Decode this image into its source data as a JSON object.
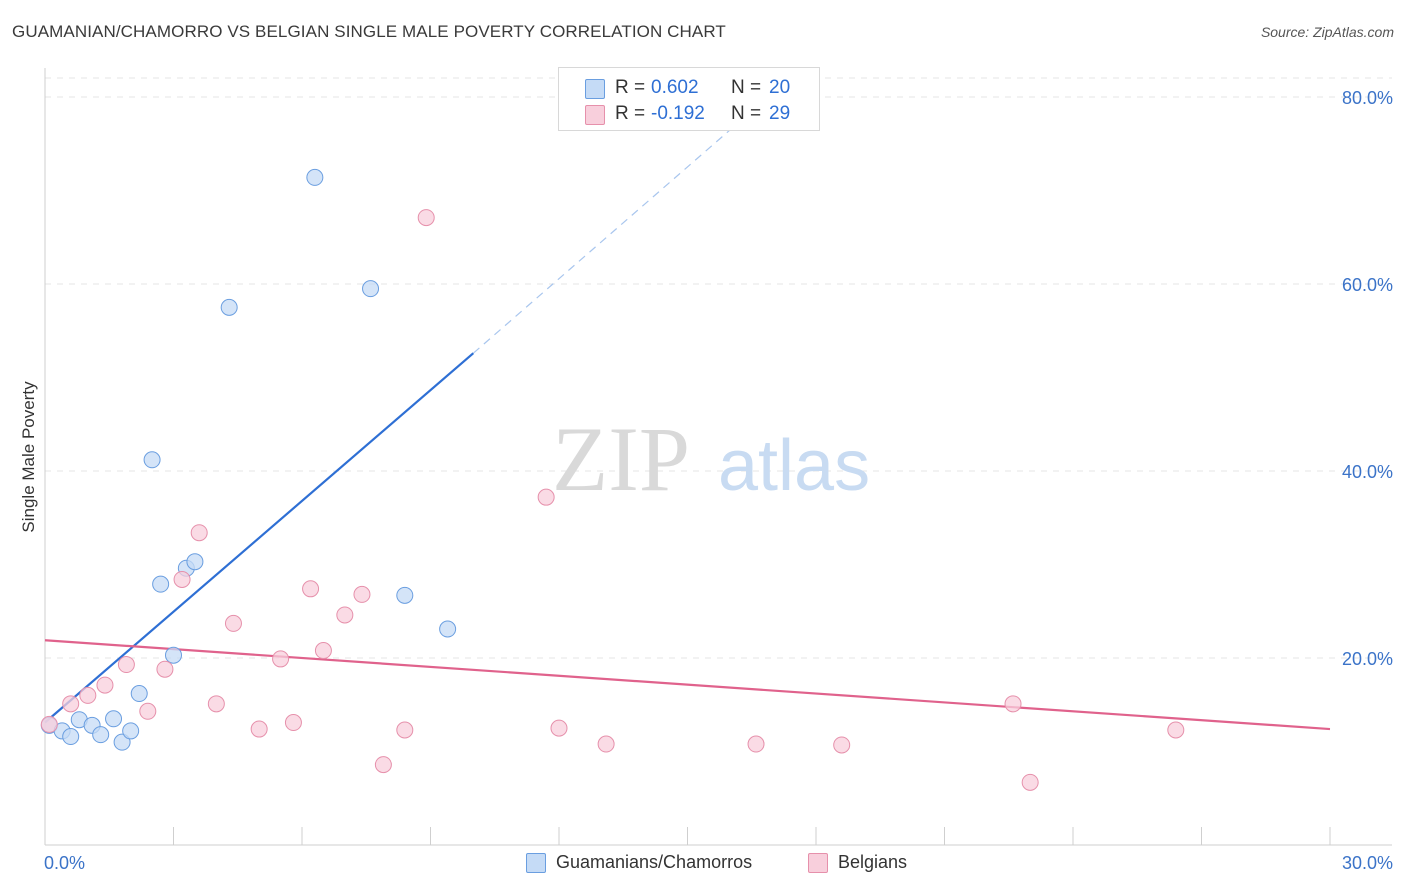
{
  "title": "GUAMANIAN/CHAMORRO VS BELGIAN SINGLE MALE POVERTY CORRELATION CHART",
  "source": "Source: ZipAtlas.com",
  "watermark": {
    "zip": "ZIP",
    "atlas": "atlas"
  },
  "legend": {
    "r_label": "R =",
    "n_label": "N =",
    "series1": {
      "r": "0.602",
      "n": "20",
      "color": "#b3d0f5",
      "border": "#6a9ee0"
    },
    "series2": {
      "r": "-0.192",
      "n": "29",
      "color": "#f8c6d5",
      "border": "#e690ab"
    }
  },
  "bottom_legend": {
    "series1": "Guamanians/Chamorros",
    "series2": "Belgians"
  },
  "chart_data": {
    "type": "scatter",
    "title": "GUAMANIAN/CHAMORRO VS BELGIAN SINGLE MALE POVERTY CORRELATION CHART",
    "xlabel": "",
    "ylabel": "Single Male Poverty",
    "xlim": [
      0,
      30
    ],
    "ylim": [
      0,
      80
    ],
    "x_tick_labels": [
      "0.0%",
      "30.0%"
    ],
    "y_tick_labels": [
      "20.0%",
      "40.0%",
      "60.0%",
      "80.0%"
    ],
    "y_ticks": [
      20,
      40,
      60,
      80
    ],
    "series": [
      {
        "name": "Guamanians/Chamorros",
        "color": "#6a9ee0",
        "fill": "#c5dbf6",
        "points": [
          [
            0.1,
            12.8
          ],
          [
            0.4,
            12.2
          ],
          [
            0.6,
            11.6
          ],
          [
            0.8,
            13.4
          ],
          [
            1.1,
            12.8
          ],
          [
            1.3,
            11.8
          ],
          [
            1.6,
            13.5
          ],
          [
            1.8,
            11.0
          ],
          [
            2.0,
            12.2
          ],
          [
            2.2,
            16.2
          ],
          [
            2.5,
            41.2
          ],
          [
            2.7,
            27.9
          ],
          [
            3.0,
            20.3
          ],
          [
            3.3,
            29.6
          ],
          [
            3.5,
            30.3
          ],
          [
            4.3,
            57.5
          ],
          [
            6.3,
            71.4
          ],
          [
            7.6,
            59.5
          ],
          [
            8.4,
            26.7
          ],
          [
            9.4,
            23.1
          ]
        ],
        "trend": {
          "x0": 0,
          "y0": 13.1,
          "x1": 10.0,
          "y1": 52.6,
          "dash_x1": 16.5,
          "dash_y1": 78.5,
          "color": "#2e6fd4"
        }
      },
      {
        "name": "Belgians",
        "color": "#e690ab",
        "fill": "#f8cfdc",
        "points": [
          [
            0.1,
            12.9
          ],
          [
            0.6,
            15.1
          ],
          [
            1.0,
            16.0
          ],
          [
            1.4,
            17.1
          ],
          [
            1.9,
            19.3
          ],
          [
            2.4,
            14.3
          ],
          [
            2.8,
            18.8
          ],
          [
            3.2,
            28.4
          ],
          [
            3.6,
            33.4
          ],
          [
            4.0,
            15.1
          ],
          [
            4.4,
            23.7
          ],
          [
            5.0,
            12.4
          ],
          [
            5.5,
            19.9
          ],
          [
            5.8,
            13.1
          ],
          [
            6.2,
            27.4
          ],
          [
            6.5,
            20.8
          ],
          [
            7.0,
            24.6
          ],
          [
            7.4,
            26.8
          ],
          [
            7.9,
            8.6
          ],
          [
            8.4,
            12.3
          ],
          [
            8.9,
            67.1
          ],
          [
            11.7,
            37.2
          ],
          [
            12.0,
            12.5
          ],
          [
            13.1,
            10.8
          ],
          [
            16.6,
            10.8
          ],
          [
            18.6,
            10.7
          ],
          [
            22.6,
            15.1
          ],
          [
            23.0,
            6.7
          ],
          [
            26.4,
            12.3
          ]
        ],
        "trend": {
          "x0": 0,
          "y0": 21.9,
          "x1": 30,
          "y1": 12.4,
          "color": "#e0628c"
        }
      }
    ]
  }
}
